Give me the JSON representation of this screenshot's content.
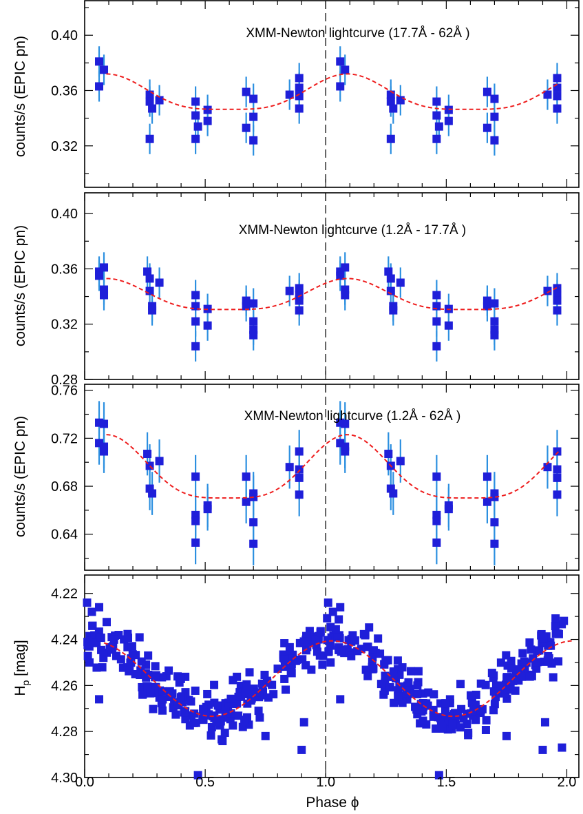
{
  "chart_data": {
    "type": "scatter",
    "xlabel": "Phase ϕ",
    "xlim": [
      0.0,
      2.05
    ],
    "x_ticks": [
      "0.0",
      "0.5",
      "1.0",
      "1.5",
      "2.0"
    ],
    "x_tick_values": [
      0.0,
      0.5,
      1.0,
      1.5,
      2.0
    ],
    "reference_line_phase": 1.0,
    "colors": {
      "points": "#1f1fd9",
      "error_bars": "#2b8fe0",
      "fit": "#ee1c1c"
    },
    "panels": [
      {
        "title": "XMM-Newton lightcurve (17.7Å - 62Å )",
        "ylabel": "counts/s (EPIC pn)",
        "ylim": [
          0.29,
          0.425
        ],
        "y_ticks": [
          "0.40",
          "0.36",
          "0.32"
        ],
        "y_tick_values": [
          0.4,
          0.36,
          0.32
        ],
        "fit": {
          "mean": 0.356,
          "amp": 0.016,
          "peak_phase": 1.09,
          "x_range": [
            0.09,
            1.97
          ]
        },
        "points": [
          {
            "x": 0.06,
            "y": 0.381,
            "err": 0.011
          },
          {
            "x": 0.06,
            "y": 0.363,
            "err": 0.011
          },
          {
            "x": 0.08,
            "y": 0.375,
            "err": 0.011
          },
          {
            "x": 0.27,
            "y": 0.357,
            "err": 0.011
          },
          {
            "x": 0.27,
            "y": 0.352,
            "err": 0.011
          },
          {
            "x": 0.28,
            "y": 0.347,
            "err": 0.011
          },
          {
            "x": 0.27,
            "y": 0.325,
            "err": 0.011
          },
          {
            "x": 0.31,
            "y": 0.353,
            "err": 0.011
          },
          {
            "x": 0.46,
            "y": 0.352,
            "err": 0.011
          },
          {
            "x": 0.46,
            "y": 0.342,
            "err": 0.011
          },
          {
            "x": 0.47,
            "y": 0.334,
            "err": 0.011
          },
          {
            "x": 0.46,
            "y": 0.325,
            "err": 0.011
          },
          {
            "x": 0.51,
            "y": 0.346,
            "err": 0.011
          },
          {
            "x": 0.51,
            "y": 0.338,
            "err": 0.011
          },
          {
            "x": 0.67,
            "y": 0.359,
            "err": 0.011
          },
          {
            "x": 0.67,
            "y": 0.333,
            "err": 0.011
          },
          {
            "x": 0.7,
            "y": 0.354,
            "err": 0.011
          },
          {
            "x": 0.7,
            "y": 0.341,
            "err": 0.011
          },
          {
            "x": 0.7,
            "y": 0.324,
            "err": 0.011
          },
          {
            "x": 0.85,
            "y": 0.357,
            "err": 0.011
          },
          {
            "x": 0.89,
            "y": 0.369,
            "err": 0.011
          },
          {
            "x": 0.89,
            "y": 0.362,
            "err": 0.011
          },
          {
            "x": 0.89,
            "y": 0.356,
            "err": 0.011
          },
          {
            "x": 0.89,
            "y": 0.347,
            "err": 0.011
          },
          {
            "x": 1.06,
            "y": 0.381,
            "err": 0.011
          },
          {
            "x": 1.06,
            "y": 0.363,
            "err": 0.011
          },
          {
            "x": 1.08,
            "y": 0.375,
            "err": 0.011
          },
          {
            "x": 1.27,
            "y": 0.357,
            "err": 0.011
          },
          {
            "x": 1.27,
            "y": 0.352,
            "err": 0.011
          },
          {
            "x": 1.28,
            "y": 0.347,
            "err": 0.011
          },
          {
            "x": 1.27,
            "y": 0.325,
            "err": 0.011
          },
          {
            "x": 1.31,
            "y": 0.353,
            "err": 0.011
          },
          {
            "x": 1.46,
            "y": 0.352,
            "err": 0.011
          },
          {
            "x": 1.46,
            "y": 0.342,
            "err": 0.011
          },
          {
            "x": 1.47,
            "y": 0.334,
            "err": 0.011
          },
          {
            "x": 1.46,
            "y": 0.325,
            "err": 0.011
          },
          {
            "x": 1.51,
            "y": 0.346,
            "err": 0.011
          },
          {
            "x": 1.51,
            "y": 0.338,
            "err": 0.011
          },
          {
            "x": 1.67,
            "y": 0.359,
            "err": 0.011
          },
          {
            "x": 1.67,
            "y": 0.333,
            "err": 0.011
          },
          {
            "x": 1.7,
            "y": 0.354,
            "err": 0.011
          },
          {
            "x": 1.7,
            "y": 0.341,
            "err": 0.011
          },
          {
            "x": 1.7,
            "y": 0.324,
            "err": 0.011
          },
          {
            "x": 1.92,
            "y": 0.357,
            "err": 0.011
          },
          {
            "x": 1.96,
            "y": 0.369,
            "err": 0.011
          },
          {
            "x": 1.96,
            "y": 0.362,
            "err": 0.011
          },
          {
            "x": 1.96,
            "y": 0.356,
            "err": 0.011
          },
          {
            "x": 1.96,
            "y": 0.347,
            "err": 0.011
          }
        ]
      },
      {
        "title": "XMM-Newton lightcurve (1.2Å - 17.7Å )",
        "ylabel": "counts/s (EPIC pn)",
        "ylim": [
          0.28,
          0.415
        ],
        "y_ticks": [
          "0.40",
          "0.36",
          "0.32",
          "0.28"
        ],
        "y_tick_values": [
          0.4,
          0.36,
          0.32,
          0.28
        ],
        "fit": {
          "mean": 0.339,
          "amp": 0.014,
          "peak_phase": 1.09,
          "x_range": [
            0.09,
            1.97
          ]
        },
        "points": [
          {
            "x": 0.06,
            "y": 0.358,
            "err": 0.011
          },
          {
            "x": 0.06,
            "y": 0.355,
            "err": 0.011
          },
          {
            "x": 0.08,
            "y": 0.361,
            "err": 0.011
          },
          {
            "x": 0.08,
            "y": 0.345,
            "err": 0.011
          },
          {
            "x": 0.08,
            "y": 0.341,
            "err": 0.011
          },
          {
            "x": 0.26,
            "y": 0.358,
            "err": 0.011
          },
          {
            "x": 0.27,
            "y": 0.353,
            "err": 0.011
          },
          {
            "x": 0.27,
            "y": 0.344,
            "err": 0.011
          },
          {
            "x": 0.28,
            "y": 0.333,
            "err": 0.011
          },
          {
            "x": 0.28,
            "y": 0.33,
            "err": 0.011
          },
          {
            "x": 0.31,
            "y": 0.35,
            "err": 0.011
          },
          {
            "x": 0.46,
            "y": 0.341,
            "err": 0.011
          },
          {
            "x": 0.46,
            "y": 0.333,
            "err": 0.011
          },
          {
            "x": 0.46,
            "y": 0.322,
            "err": 0.011
          },
          {
            "x": 0.46,
            "y": 0.304,
            "err": 0.011
          },
          {
            "x": 0.51,
            "y": 0.331,
            "err": 0.011
          },
          {
            "x": 0.51,
            "y": 0.319,
            "err": 0.011
          },
          {
            "x": 0.67,
            "y": 0.337,
            "err": 0.011
          },
          {
            "x": 0.67,
            "y": 0.333,
            "err": 0.011
          },
          {
            "x": 0.7,
            "y": 0.335,
            "err": 0.011
          },
          {
            "x": 0.7,
            "y": 0.322,
            "err": 0.011
          },
          {
            "x": 0.7,
            "y": 0.316,
            "err": 0.011
          },
          {
            "x": 0.7,
            "y": 0.312,
            "err": 0.011
          },
          {
            "x": 0.85,
            "y": 0.344,
            "err": 0.011
          },
          {
            "x": 0.89,
            "y": 0.346,
            "err": 0.011
          },
          {
            "x": 0.89,
            "y": 0.341,
            "err": 0.011
          },
          {
            "x": 0.89,
            "y": 0.337,
            "err": 0.011
          },
          {
            "x": 0.89,
            "y": 0.33,
            "err": 0.011
          },
          {
            "x": 1.06,
            "y": 0.358,
            "err": 0.011
          },
          {
            "x": 1.06,
            "y": 0.355,
            "err": 0.011
          },
          {
            "x": 1.08,
            "y": 0.361,
            "err": 0.011
          },
          {
            "x": 1.08,
            "y": 0.345,
            "err": 0.011
          },
          {
            "x": 1.08,
            "y": 0.341,
            "err": 0.011
          },
          {
            "x": 1.26,
            "y": 0.358,
            "err": 0.011
          },
          {
            "x": 1.27,
            "y": 0.353,
            "err": 0.011
          },
          {
            "x": 1.27,
            "y": 0.344,
            "err": 0.011
          },
          {
            "x": 1.28,
            "y": 0.333,
            "err": 0.011
          },
          {
            "x": 1.28,
            "y": 0.33,
            "err": 0.011
          },
          {
            "x": 1.31,
            "y": 0.35,
            "err": 0.011
          },
          {
            "x": 1.46,
            "y": 0.341,
            "err": 0.011
          },
          {
            "x": 1.46,
            "y": 0.333,
            "err": 0.011
          },
          {
            "x": 1.46,
            "y": 0.322,
            "err": 0.011
          },
          {
            "x": 1.46,
            "y": 0.304,
            "err": 0.011
          },
          {
            "x": 1.51,
            "y": 0.331,
            "err": 0.011
          },
          {
            "x": 1.51,
            "y": 0.319,
            "err": 0.011
          },
          {
            "x": 1.67,
            "y": 0.337,
            "err": 0.011
          },
          {
            "x": 1.67,
            "y": 0.333,
            "err": 0.011
          },
          {
            "x": 1.7,
            "y": 0.335,
            "err": 0.011
          },
          {
            "x": 1.7,
            "y": 0.322,
            "err": 0.011
          },
          {
            "x": 1.7,
            "y": 0.316,
            "err": 0.011
          },
          {
            "x": 1.7,
            "y": 0.312,
            "err": 0.011
          },
          {
            "x": 1.92,
            "y": 0.344,
            "err": 0.011
          },
          {
            "x": 1.96,
            "y": 0.346,
            "err": 0.011
          },
          {
            "x": 1.96,
            "y": 0.341,
            "err": 0.011
          },
          {
            "x": 1.96,
            "y": 0.337,
            "err": 0.011
          },
          {
            "x": 1.96,
            "y": 0.33,
            "err": 0.011
          }
        ]
      },
      {
        "title": "XMM-Newton lightcurve (1.2Å - 62Å )",
        "ylabel": "counts/s (EPIC pn)",
        "ylim": [
          0.61,
          0.765
        ],
        "y_ticks": [
          "0.76",
          "0.72",
          "0.68",
          "0.64"
        ],
        "y_tick_values": [
          0.76,
          0.72,
          0.68,
          0.64
        ],
        "fit": {
          "mean": 0.69,
          "amp": 0.033,
          "peak_phase": 1.09,
          "x_range": [
            0.09,
            1.97
          ]
        },
        "points": [
          {
            "x": 0.06,
            "y": 0.733,
            "err": 0.018
          },
          {
            "x": 0.06,
            "y": 0.716,
            "err": 0.018
          },
          {
            "x": 0.08,
            "y": 0.732,
            "err": 0.018
          },
          {
            "x": 0.08,
            "y": 0.713,
            "err": 0.018
          },
          {
            "x": 0.08,
            "y": 0.709,
            "err": 0.018
          },
          {
            "x": 0.26,
            "y": 0.707,
            "err": 0.018
          },
          {
            "x": 0.27,
            "y": 0.697,
            "err": 0.018
          },
          {
            "x": 0.27,
            "y": 0.678,
            "err": 0.018
          },
          {
            "x": 0.28,
            "y": 0.674,
            "err": 0.018
          },
          {
            "x": 0.31,
            "y": 0.701,
            "err": 0.018
          },
          {
            "x": 0.46,
            "y": 0.688,
            "err": 0.018
          },
          {
            "x": 0.46,
            "y": 0.656,
            "err": 0.018
          },
          {
            "x": 0.46,
            "y": 0.651,
            "err": 0.018
          },
          {
            "x": 0.46,
            "y": 0.633,
            "err": 0.018
          },
          {
            "x": 0.51,
            "y": 0.664,
            "err": 0.018
          },
          {
            "x": 0.51,
            "y": 0.661,
            "err": 0.018
          },
          {
            "x": 0.67,
            "y": 0.688,
            "err": 0.018
          },
          {
            "x": 0.67,
            "y": 0.667,
            "err": 0.018
          },
          {
            "x": 0.7,
            "y": 0.674,
            "err": 0.018
          },
          {
            "x": 0.7,
            "y": 0.671,
            "err": 0.018
          },
          {
            "x": 0.7,
            "y": 0.65,
            "err": 0.018
          },
          {
            "x": 0.7,
            "y": 0.632,
            "err": 0.018
          },
          {
            "x": 0.85,
            "y": 0.696,
            "err": 0.018
          },
          {
            "x": 0.89,
            "y": 0.709,
            "err": 0.018
          },
          {
            "x": 0.89,
            "y": 0.694,
            "err": 0.018
          },
          {
            "x": 0.89,
            "y": 0.687,
            "err": 0.018
          },
          {
            "x": 0.89,
            "y": 0.673,
            "err": 0.018
          },
          {
            "x": 1.06,
            "y": 0.733,
            "err": 0.018
          },
          {
            "x": 1.06,
            "y": 0.716,
            "err": 0.018
          },
          {
            "x": 1.08,
            "y": 0.732,
            "err": 0.018
          },
          {
            "x": 1.08,
            "y": 0.713,
            "err": 0.018
          },
          {
            "x": 1.08,
            "y": 0.709,
            "err": 0.018
          },
          {
            "x": 1.26,
            "y": 0.707,
            "err": 0.018
          },
          {
            "x": 1.27,
            "y": 0.697,
            "err": 0.018
          },
          {
            "x": 1.27,
            "y": 0.678,
            "err": 0.018
          },
          {
            "x": 1.28,
            "y": 0.674,
            "err": 0.018
          },
          {
            "x": 1.31,
            "y": 0.701,
            "err": 0.018
          },
          {
            "x": 1.46,
            "y": 0.688,
            "err": 0.018
          },
          {
            "x": 1.46,
            "y": 0.656,
            "err": 0.018
          },
          {
            "x": 1.46,
            "y": 0.651,
            "err": 0.018
          },
          {
            "x": 1.46,
            "y": 0.633,
            "err": 0.018
          },
          {
            "x": 1.51,
            "y": 0.664,
            "err": 0.018
          },
          {
            "x": 1.51,
            "y": 0.661,
            "err": 0.018
          },
          {
            "x": 1.67,
            "y": 0.688,
            "err": 0.018
          },
          {
            "x": 1.67,
            "y": 0.667,
            "err": 0.018
          },
          {
            "x": 1.7,
            "y": 0.674,
            "err": 0.018
          },
          {
            "x": 1.7,
            "y": 0.671,
            "err": 0.018
          },
          {
            "x": 1.7,
            "y": 0.65,
            "err": 0.018
          },
          {
            "x": 1.7,
            "y": 0.632,
            "err": 0.018
          },
          {
            "x": 1.92,
            "y": 0.696,
            "err": 0.018
          },
          {
            "x": 1.96,
            "y": 0.709,
            "err": 0.018
          },
          {
            "x": 1.96,
            "y": 0.694,
            "err": 0.018
          },
          {
            "x": 1.96,
            "y": 0.687,
            "err": 0.018
          },
          {
            "x": 1.96,
            "y": 0.673,
            "err": 0.018
          }
        ]
      },
      {
        "title": "",
        "ylabel": "H",
        "ylabel_subscript": "p",
        "ylabel_suffix": " [mag]",
        "ylim": [
          4.3,
          4.212
        ],
        "y_ticks": [
          "4.22",
          "4.24",
          "4.26",
          "4.28",
          "4.30"
        ],
        "y_tick_values": [
          4.22,
          4.24,
          4.26,
          4.28,
          4.3
        ],
        "fit": {
          "mean": 4.257,
          "amp": 0.019,
          "peak_phase": 1.0,
          "x_range": [
            0.08,
            2.03
          ]
        },
        "points": [
          {
            "x": 0.01,
            "y": 4.224
          },
          {
            "x": 0.03,
            "y": 4.228
          },
          {
            "x": 0.06,
            "y": 4.226
          },
          {
            "x": 0.02,
            "y": 4.25
          },
          {
            "x": 0.06,
            "y": 4.266
          },
          {
            "x": 0.24,
            "y": 4.264
          },
          {
            "x": 0.47,
            "y": 4.299
          },
          {
            "x": 0.75,
            "y": 4.282
          },
          {
            "x": 0.9,
            "y": 4.288
          },
          {
            "x": 0.91,
            "y": 4.276
          },
          {
            "x": 1.01,
            "y": 4.224
          },
          {
            "x": 1.03,
            "y": 4.228
          },
          {
            "x": 1.06,
            "y": 4.226
          },
          {
            "x": 1.02,
            "y": 4.25
          },
          {
            "x": 1.06,
            "y": 4.266
          },
          {
            "x": 1.24,
            "y": 4.264
          },
          {
            "x": 1.47,
            "y": 4.299
          },
          {
            "x": 1.75,
            "y": 4.282
          },
          {
            "x": 1.9,
            "y": 4.288
          },
          {
            "x": 1.91,
            "y": 4.276
          },
          {
            "x": 1.98,
            "y": 4.287
          }
        ],
        "scatter_generated": {
          "count_per_cycle": 230,
          "noise": 0.0055,
          "seed": 7
        }
      }
    ]
  }
}
